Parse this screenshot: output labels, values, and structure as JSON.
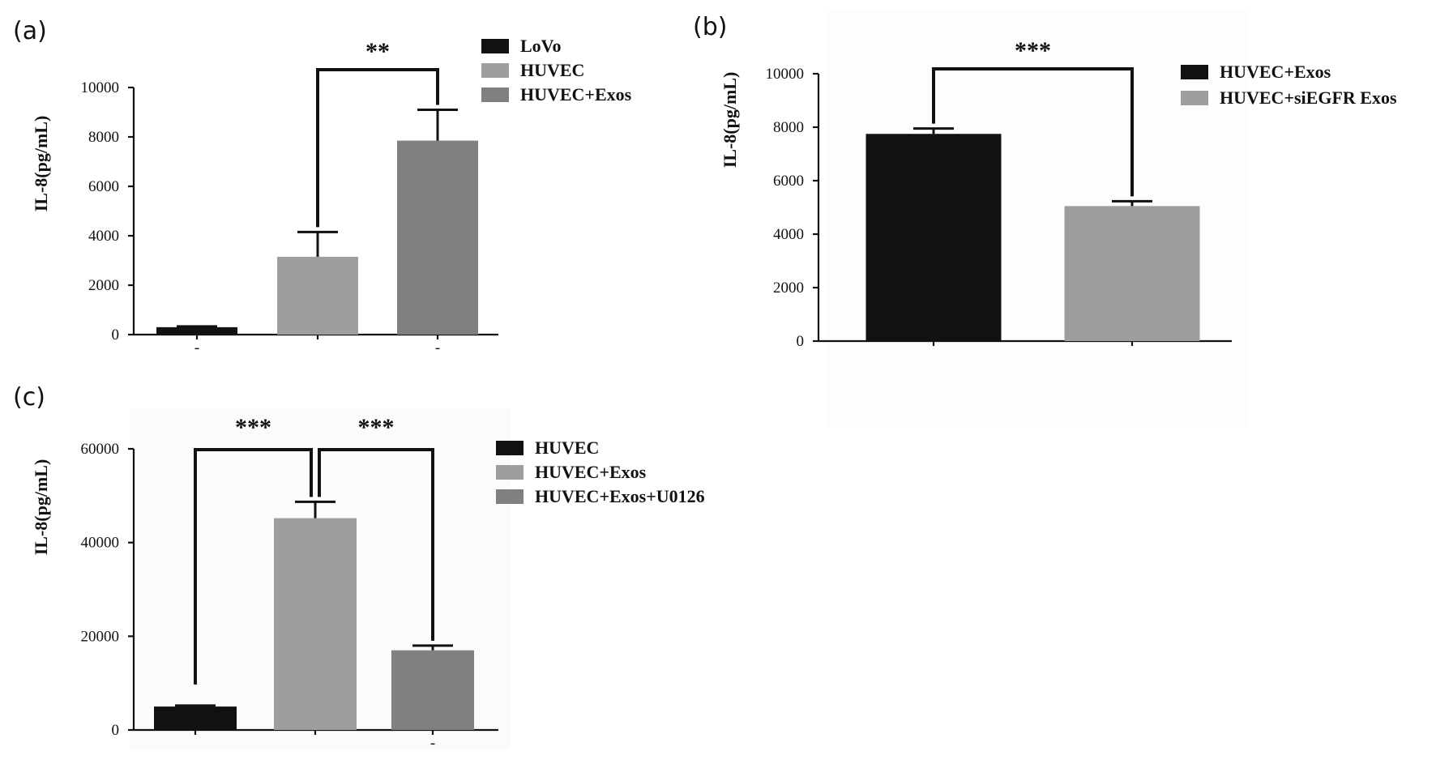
{
  "chart_data": [
    {
      "type": "bar",
      "panel_label": "(a)",
      "title": "",
      "xlabel": "",
      "ylabel": "IL-8(pg/mL)",
      "ylim": [
        0,
        10000
      ],
      "yticks": [
        0,
        2000,
        4000,
        6000,
        8000,
        10000
      ],
      "xtick_labels": [
        "-",
        "",
        "-"
      ],
      "legend_position": "top-right",
      "series": [
        {
          "name": "LoVo",
          "value": 300,
          "error": 30,
          "color": "#111111"
        },
        {
          "name": "HUVEC",
          "value": 3150,
          "error": 1000,
          "color": "#9f9d9e"
        },
        {
          "name": "HUVEC+Exos",
          "value": 7850,
          "error": 1250,
          "color": "#827f80"
        }
      ],
      "significance": [
        {
          "from": 1,
          "to": 2,
          "label": "**"
        }
      ]
    },
    {
      "type": "bar",
      "panel_label": "(b)",
      "title": "",
      "xlabel": "",
      "ylabel": "IL-8(pg/mL)",
      "ylim": [
        0,
        10000
      ],
      "yticks": [
        0,
        2000,
        4000,
        6000,
        8000,
        10000
      ],
      "xtick_labels": [
        "",
        ""
      ],
      "legend_position": "top-right",
      "series": [
        {
          "name": "HUVEC+Exos",
          "value": 7750,
          "error": 200,
          "color": "#111111"
        },
        {
          "name": "HUVEC+siEGFR Exos",
          "value": 5050,
          "error": 180,
          "color": "#9f9d9e"
        }
      ],
      "significance": [
        {
          "from": 0,
          "to": 1,
          "label": "***"
        }
      ]
    },
    {
      "type": "bar",
      "panel_label": "(c)",
      "title": "",
      "xlabel": "",
      "ylabel": "IL-8(pg/mL)",
      "ylim": [
        0,
        60000
      ],
      "yticks": [
        0,
        20000,
        40000,
        60000
      ],
      "xtick_labels": [
        "",
        "",
        "-"
      ],
      "legend_position": "top-right",
      "series": [
        {
          "name": "HUVEC",
          "value": 5000,
          "error": 200,
          "color": "#111111"
        },
        {
          "name": "HUVEC+Exos",
          "value": 45200,
          "error": 3500,
          "color": "#9f9d9e"
        },
        {
          "name": "HUVEC+Exos+U0126",
          "value": 17000,
          "error": 1000,
          "color": "#827f80"
        }
      ],
      "significance": [
        {
          "from": 0,
          "to": 1,
          "label": "***"
        },
        {
          "from": 1,
          "to": 2,
          "label": "***"
        }
      ]
    }
  ]
}
